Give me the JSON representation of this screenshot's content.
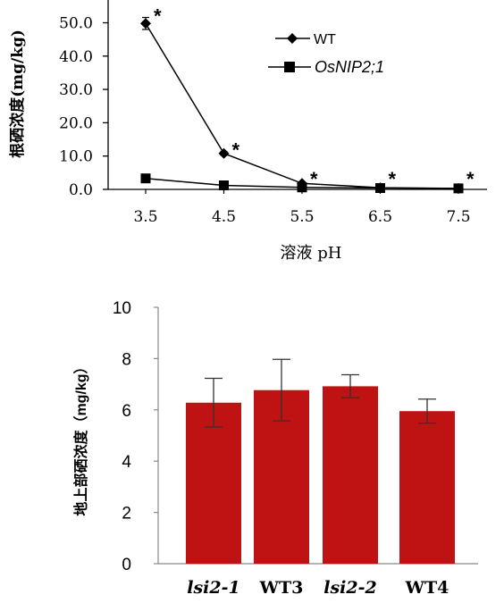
{
  "chart_data": [
    {
      "type": "line",
      "ylabel": "根硒浓度(mg/kg)",
      "xlabel": "溶液 pH",
      "x": [
        3.5,
        4.5,
        5.5,
        6.5,
        7.5
      ],
      "x_ticks": [
        "3.5",
        "4.5",
        "5.5",
        "6.5",
        "7.5"
      ],
      "y_ticks": [
        "0.0",
        "10.0",
        "20.0",
        "30.0",
        "40.0",
        "50.0"
      ],
      "ylim": [
        0,
        55
      ],
      "grid": false,
      "legend_position": "top-right",
      "series": [
        {
          "name": "WT",
          "marker": "diamond",
          "values": [
            49.8,
            10.8,
            1.8,
            0.5,
            0.3
          ],
          "error": [
            1.8,
            0.6,
            0.3,
            0.1,
            0.1
          ]
        },
        {
          "name": "OsNIP2;1",
          "marker": "square",
          "values": [
            3.3,
            1.2,
            0.6,
            0.4,
            0.3
          ],
          "error": [
            0,
            0,
            0,
            0,
            0
          ]
        }
      ],
      "annotations": [
        "*",
        "*",
        "*",
        "*",
        "*"
      ]
    },
    {
      "type": "bar",
      "ylabel": "地上部硒浓度（mg/kg）",
      "categories": [
        "lsi2-1",
        "WT3",
        "lsi2-2",
        "WT4"
      ],
      "category_italic": [
        true,
        false,
        true,
        false
      ],
      "values": [
        6.28,
        6.77,
        6.92,
        5.95
      ],
      "error": [
        0.95,
        1.2,
        0.45,
        0.47
      ],
      "y_ticks": [
        "0",
        "2",
        "4",
        "6",
        "8",
        "10"
      ],
      "ylim": [
        0,
        10
      ],
      "grid": false,
      "bar_color": "#bf1212"
    }
  ]
}
